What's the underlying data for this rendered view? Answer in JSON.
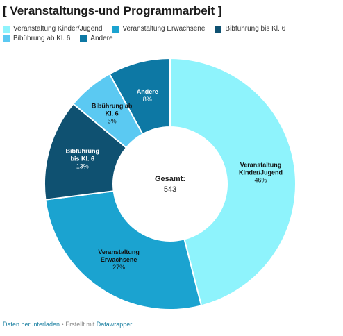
{
  "title": "[ Veranstaltungs-und Programmarbeit ]",
  "legend": [
    {
      "label": "Veranstaltung Kinder/Jugend",
      "color": "#8ef3fc"
    },
    {
      "label": "Veranstaltung Erwachsene",
      "color": "#1ba3d0"
    },
    {
      "label": "Bibführung bis Kl. 6",
      "color": "#0f5171"
    },
    {
      "label": "Bibührung ab Kl. 6",
      "color": "#5bc9f2"
    },
    {
      "label": "Andere",
      "color": "#0d78a4"
    }
  ],
  "chart_data": {
    "type": "pie",
    "donut": true,
    "series": [
      {
        "name": "Veranstaltung Kinder/Jugend",
        "value": 46,
        "color": "#8ef3fc",
        "label_lines": [
          "Veranstaltung",
          "Kinder/Jugend"
        ],
        "label_text_color": "#111111",
        "value_text": "46%"
      },
      {
        "name": "Veranstaltung Erwachsene",
        "value": 27,
        "color": "#1ba3d0",
        "label_lines": [
          "Veranstaltung",
          "Erwachsene"
        ],
        "label_text_color": "#111111",
        "value_text": "27%"
      },
      {
        "name": "Bibführung bis Kl. 6",
        "value": 13,
        "color": "#0f5171",
        "label_lines": [
          "Bibführung",
          "bis Kl. 6"
        ],
        "label_text_color": "#ffffff",
        "value_text": "13%"
      },
      {
        "name": "Bibührung ab Kl. 6",
        "value": 6,
        "color": "#5bc9f2",
        "label_lines": [
          "Bibührung ab",
          "Kl. 6"
        ],
        "label_text_color": "#111111",
        "value_text": "6%"
      },
      {
        "name": "Andere",
        "value": 8,
        "color": "#0d78a4",
        "label_lines": [
          "Andere"
        ],
        "label_text_color": "#ffffff",
        "value_text": "8%"
      }
    ],
    "center_label": "Gesamt:",
    "center_value": "543"
  },
  "footer": {
    "download_label": "Daten herunterladen",
    "separator": " • Erstellt mit ",
    "tool_label": "Datawrapper"
  }
}
